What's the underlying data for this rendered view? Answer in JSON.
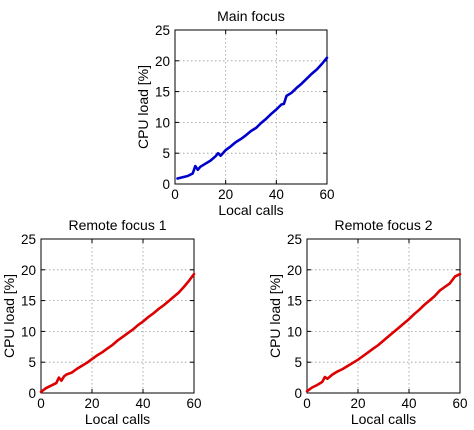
{
  "chart_data": [
    {
      "type": "line",
      "title": "Main focus",
      "xlabel": "Local calls",
      "ylabel": "CPU load [%]",
      "xlim": [
        0,
        60
      ],
      "ylim": [
        0,
        25
      ],
      "xticks": [
        0,
        20,
        40,
        60
      ],
      "yticks": [
        0,
        5,
        10,
        15,
        20,
        25
      ],
      "grid": true,
      "series": [
        {
          "color": "#0000cc",
          "x": [
            1,
            3,
            5,
            7,
            8,
            9,
            10,
            12,
            14,
            16,
            17,
            18,
            20,
            22,
            24,
            26,
            28,
            30,
            32,
            34,
            36,
            38,
            40,
            42,
            43,
            44,
            46,
            48,
            50,
            52,
            54,
            56,
            58,
            60
          ],
          "y": [
            0.9,
            1.1,
            1.3,
            1.7,
            2.9,
            2.3,
            2.8,
            3.3,
            3.8,
            4.5,
            5.0,
            4.6,
            5.5,
            6.1,
            6.8,
            7.3,
            7.9,
            8.6,
            9.1,
            9.9,
            10.6,
            11.4,
            12.1,
            12.9,
            13.0,
            14.3,
            14.8,
            15.6,
            16.3,
            17.1,
            17.9,
            18.6,
            19.5,
            20.5
          ]
        }
      ]
    },
    {
      "type": "line",
      "title": "Remote focus 1",
      "xlabel": "Local calls",
      "ylabel": "CPU load [%]",
      "xlim": [
        0,
        60
      ],
      "ylim": [
        0,
        25
      ],
      "xticks": [
        0,
        20,
        40,
        60
      ],
      "yticks": [
        0,
        5,
        10,
        15,
        20,
        25
      ],
      "grid": true,
      "series": [
        {
          "color": "#dd0000",
          "x": [
            0,
            2,
            4,
            6,
            7,
            8,
            9,
            10,
            12,
            14,
            16,
            18,
            20,
            22,
            24,
            26,
            28,
            30,
            32,
            34,
            36,
            38,
            40,
            42,
            44,
            46,
            48,
            50,
            52,
            54,
            56,
            58,
            60
          ],
          "y": [
            0.2,
            0.8,
            1.2,
            1.6,
            2.5,
            2.0,
            2.7,
            3.0,
            3.3,
            3.9,
            4.4,
            4.9,
            5.5,
            6.1,
            6.6,
            7.2,
            7.8,
            8.5,
            9.1,
            9.7,
            10.3,
            11.0,
            11.6,
            12.3,
            12.9,
            13.6,
            14.2,
            14.9,
            15.6,
            16.3,
            17.2,
            18.2,
            19.3
          ]
        }
      ]
    },
    {
      "type": "line",
      "title": "Remote focus 2",
      "xlabel": "Local calls",
      "ylabel": "CPU load [%]",
      "xlim": [
        0,
        60
      ],
      "ylim": [
        0,
        25
      ],
      "xticks": [
        0,
        20,
        40,
        60
      ],
      "yticks": [
        0,
        5,
        10,
        15,
        20,
        25
      ],
      "grid": true,
      "series": [
        {
          "color": "#dd0000",
          "x": [
            0,
            2,
            4,
            6,
            7,
            8,
            10,
            12,
            14,
            16,
            18,
            20,
            22,
            24,
            26,
            28,
            30,
            32,
            34,
            36,
            38,
            40,
            42,
            44,
            46,
            48,
            50,
            52,
            54,
            56,
            58,
            60
          ],
          "y": [
            0.3,
            0.9,
            1.3,
            1.8,
            2.6,
            2.3,
            3.0,
            3.5,
            3.9,
            4.4,
            4.9,
            5.4,
            6.0,
            6.6,
            7.2,
            7.8,
            8.5,
            9.2,
            9.9,
            10.6,
            11.3,
            12.0,
            12.8,
            13.5,
            14.3,
            15.0,
            15.7,
            16.6,
            17.2,
            17.8,
            18.9,
            19.3
          ]
        }
      ]
    }
  ]
}
